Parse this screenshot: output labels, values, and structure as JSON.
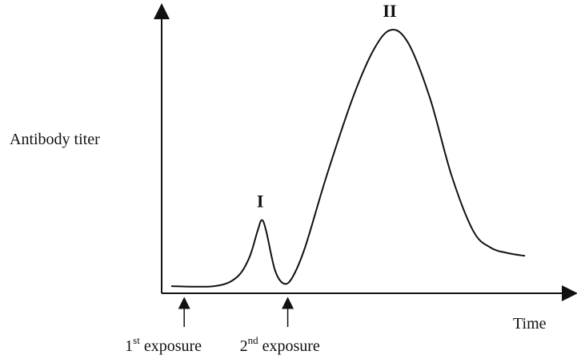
{
  "chart_data": {
    "type": "line",
    "title": "",
    "xlabel": "Time",
    "ylabel": "Antibody titer",
    "grid": false,
    "legend": "none",
    "series": [
      {
        "color": "#111111",
        "points": [
          [
            0,
            0.02
          ],
          [
            1.0,
            0.02
          ],
          [
            1.5,
            0.05
          ],
          [
            1.8,
            0.12
          ],
          [
            2.0,
            0.22
          ],
          [
            2.1,
            0.26
          ],
          [
            2.2,
            0.22
          ],
          [
            2.4,
            0.08
          ],
          [
            2.6,
            0.03
          ],
          [
            2.8,
            0.05
          ],
          [
            3.1,
            0.16
          ],
          [
            3.6,
            0.42
          ],
          [
            4.2,
            0.7
          ],
          [
            4.7,
            0.88
          ],
          [
            5.1,
            0.95
          ],
          [
            5.5,
            0.9
          ],
          [
            6.0,
            0.7
          ],
          [
            6.5,
            0.42
          ],
          [
            7.0,
            0.22
          ],
          [
            7.4,
            0.16
          ],
          [
            7.8,
            0.14
          ],
          [
            8.2,
            0.13
          ]
        ]
      }
    ],
    "peaks": [
      {
        "label": "I",
        "x": 2.1,
        "y": 0.26
      },
      {
        "label": "II",
        "x": 5.1,
        "y": 0.95
      }
    ],
    "annotations": [
      {
        "x": 0.3,
        "base": "1",
        "sup": "st",
        "text": " exposure"
      },
      {
        "x": 2.7,
        "base": "2",
        "sup": "nd",
        "text": " exposure"
      }
    ],
    "xlim": [
      0,
      9.2
    ],
    "ylim": [
      0,
      1.0
    ]
  }
}
